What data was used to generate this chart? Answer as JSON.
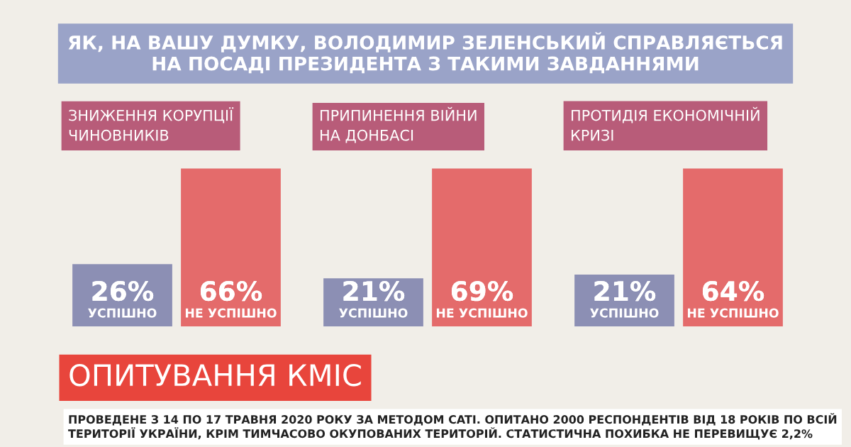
{
  "chart_data": [
    {
      "type": "other",
      "title": "ЯК, НА ВАШУ ДУМКУ, ВОЛОДИМИР ЗЕЛЕНСЬКИЙ СПРАВЛЯЄТЬСЯ\nНА ПОСАДІ ПРЕЗИДЕНТА З ТАКИМИ ЗАВДАННЯМИ",
      "annotations": [
        "ОПИТУВАННЯ КМІС",
        "ПРОВЕДЕНЕ З 14 ПО 17 ТРАВНЯ 2020 РОКУ ЗА МЕТОДОМ CATI. ОПИТАНО 2000 РЕСПОНДЕНТІВ ВІД 18 РОКІВ ПО ВСІЙ\nТЕРИТОРІЇ УКРАЇНИ, КРІМ ТИМЧАСОВО ОКУПОВАНИХ ТЕРИТОРІЙ. СТАТИСТИЧНА ПОХИБКА НЕ ПЕРЕВИЩУЄ 2,2%"
      ]
    },
    {
      "type": "bar",
      "title": "ЗНИЖЕННЯ КОРУПЦІЇ\nЧИНОВНИКІВ",
      "categories": [
        "УСПІШНО",
        "НЕ УСПІШНО"
      ],
      "values": [
        26,
        66
      ],
      "colors": [
        "#8c8fb4",
        "#e46b6b"
      ],
      "value_labels": [
        "26%",
        "66%"
      ]
    },
    {
      "type": "bar",
      "title": "ПРИПИНЕННЯ ВІЙНИ\nНА ДОНБАСІ",
      "categories": [
        "УСПІШНО",
        "НЕ УСПІШНО"
      ],
      "values": [
        21,
        69
      ],
      "colors": [
        "#8c8fb4",
        "#e46b6b"
      ],
      "value_labels": [
        "21%",
        "69%"
      ]
    },
    {
      "type": "bar",
      "title": "ПРОТИДІЯ ЕКОНОМІЧНІЙ\nКРИЗІ",
      "categories": [
        "УСПІШНО",
        "НЕ УСПІШНО"
      ],
      "values": [
        21,
        64
      ],
      "colors": [
        "#8c8fb4",
        "#e46b6b"
      ],
      "value_labels": [
        "21%",
        "64%"
      ]
    }
  ]
}
